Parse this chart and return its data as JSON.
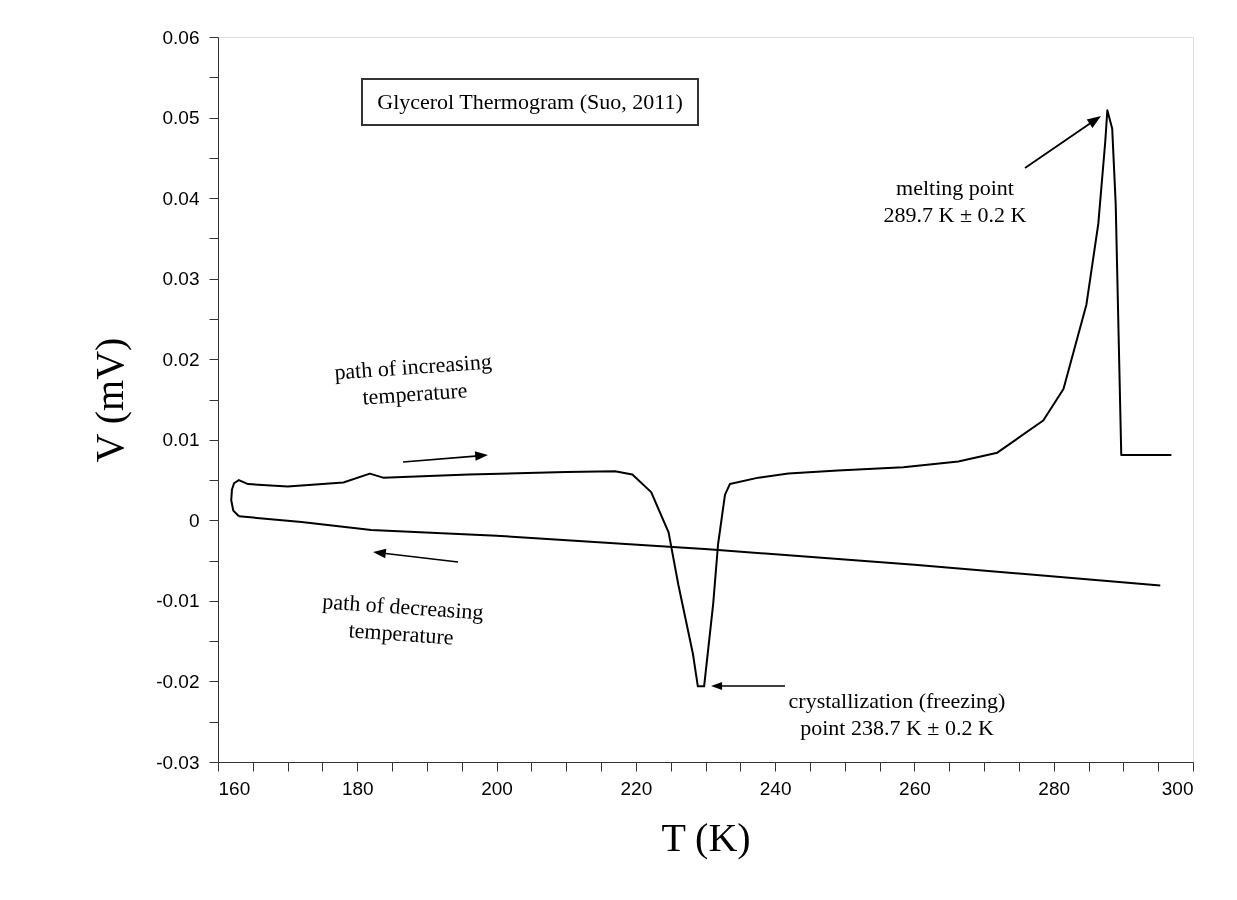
{
  "chart_data": {
    "type": "line",
    "xlabel": "T (K)",
    "ylabel": "V (mV)",
    "xlim": [
      160,
      300
    ],
    "ylim": [
      -0.03,
      0.06
    ],
    "xticks": [
      160,
      {
        "value": 165,
        "label": null
      },
      {
        "value": 170,
        "label": null
      },
      {
        "value": 175,
        "label": null
      },
      180,
      {
        "value": 185,
        "label": null
      },
      {
        "value": 190,
        "label": null
      },
      {
        "value": 195,
        "label": null
      },
      200,
      {
        "value": 205,
        "label": null
      },
      {
        "value": 210,
        "label": null
      },
      {
        "value": 215,
        "label": null
      },
      220,
      {
        "value": 225,
        "label": null
      },
      {
        "value": 230,
        "label": null
      },
      {
        "value": 235,
        "label": null
      },
      240,
      {
        "value": 245,
        "label": null
      },
      {
        "value": 250,
        "label": null
      },
      {
        "value": 255,
        "label": null
      },
      260,
      {
        "value": 265,
        "label": null
      },
      {
        "value": 270,
        "label": null
      },
      {
        "value": 275,
        "label": null
      },
      280,
      {
        "value": 285,
        "label": null
      },
      {
        "value": 290,
        "label": null
      },
      {
        "value": 295,
        "label": null
      },
      300
    ],
    "yticks": [
      -0.03,
      {
        "value": -0.025,
        "label": null
      },
      -0.02,
      {
        "value": -0.015,
        "label": null
      },
      -0.01,
      {
        "value": -0.005,
        "label": null
      },
      0,
      {
        "value": 0.005,
        "label": null
      },
      0.01,
      {
        "value": 0.015,
        "label": null
      },
      0.02,
      {
        "value": 0.025,
        "label": null
      },
      0.03,
      {
        "value": 0.035,
        "label": null
      },
      0.04,
      {
        "value": 0.045,
        "label": null
      },
      0.05,
      {
        "value": 0.055,
        "label": null
      },
      0.06
    ],
    "grid": false,
    "marker": "none",
    "line_style": "solid",
    "series": [
      {
        "color": "#000000",
        "x": [
          163.0,
          162.2,
          161.9,
          162.0,
          162.3,
          163.0,
          164.3,
          170.0,
          178.0,
          181.8,
          183.7,
          196.0,
          210.0,
          217.0,
          219.5,
          222.2,
          224.7,
          226.1,
          228.2,
          228.9,
          229.8,
          231.1,
          231.8,
          232.8,
          233.5,
          237.6,
          241.9,
          249.0,
          258.4,
          266.3,
          271.9,
          278.5,
          281.4,
          284.7,
          286.4,
          287.4,
          287.7,
          288.4,
          288.9,
          289.7,
          296.9
        ],
        "values": [
          0.0005,
          0.0012,
          0.0025,
          0.0038,
          0.0046,
          0.005,
          0.0045,
          0.0042,
          0.0047,
          0.0058,
          0.0053,
          0.0057,
          0.006,
          0.0061,
          0.0057,
          0.0035,
          -0.0015,
          -0.008,
          -0.0166,
          -0.0206,
          -0.0206,
          -0.0104,
          -0.003,
          0.0032,
          0.0045,
          0.0053,
          0.0058,
          0.0062,
          0.0066,
          0.0073,
          0.0084,
          0.0124,
          0.0163,
          0.0268,
          0.0368,
          0.047,
          0.0509,
          0.0486,
          0.0393,
          0.0081,
          0.0081
        ]
      },
      {
        "color": "#000000",
        "x": [
          163.0,
          172.0,
          182.0,
          200.0,
          230.4,
          260.0,
          295.3
        ],
        "values": [
          0.0005,
          -0.0002,
          -0.0012,
          -0.0019,
          -0.0036,
          -0.0055,
          -0.0081
        ]
      }
    ],
    "annotations": [
      "Glycerol Thermogram (Suo, 2011)",
      "path of increasing temperature",
      "path of decreasing temperature",
      "melting point\n289.7 K ± 0.2 K",
      "crystallization (freezing)\npoint 238.7 K ± 0.2 K"
    ]
  }
}
